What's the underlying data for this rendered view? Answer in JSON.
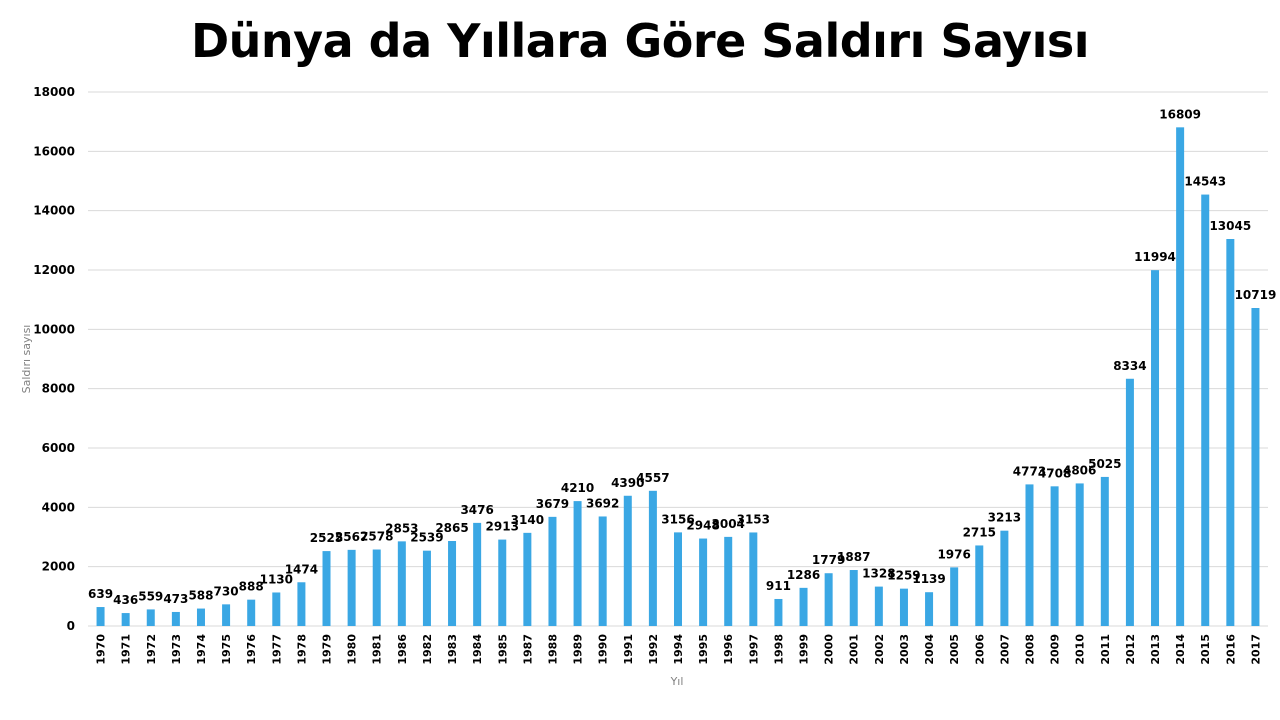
{
  "chart_data": {
    "type": "bar",
    "title": "Dünya da Yıllara Göre Saldırı Sayısı",
    "xlabel": "Yıl",
    "ylabel": "Saldırı sayısı",
    "ylim": [
      0,
      18000
    ],
    "yticks": [
      0,
      2000,
      4000,
      6000,
      8000,
      10000,
      12000,
      14000,
      16000,
      18000
    ],
    "grid": true,
    "bar_color": "#3aa7e4",
    "categories": [
      "1970",
      "1971",
      "1972",
      "1973",
      "1974",
      "1975",
      "1976",
      "1977",
      "1978",
      "1979",
      "1980",
      "1981",
      "1986",
      "1982",
      "1983",
      "1984",
      "1985",
      "1987",
      "1988",
      "1989",
      "1990",
      "1991",
      "1992",
      "1994",
      "1995",
      "1996",
      "1997",
      "1998",
      "1999",
      "2000",
      "2001",
      "2002",
      "2003",
      "2004",
      "2005",
      "2006",
      "2007",
      "2008",
      "2009",
      "2010",
      "2011",
      "2012",
      "2013",
      "2014",
      "2015",
      "2016",
      "2017"
    ],
    "values": [
      639,
      436,
      559,
      473,
      588,
      730,
      888,
      1130,
      1474,
      2525,
      2567,
      2578,
      2853,
      2539,
      2865,
      3476,
      2913,
      3140,
      3679,
      4210,
      3692,
      4390,
      4557,
      3156,
      2948,
      3004,
      3153,
      911,
      1286,
      1779,
      1887,
      1328,
      1259,
      1139,
      1976,
      2715,
      3213,
      4773,
      4708,
      4806,
      5025,
      8334,
      11994,
      16809,
      14543,
      13045,
      10719
    ]
  }
}
